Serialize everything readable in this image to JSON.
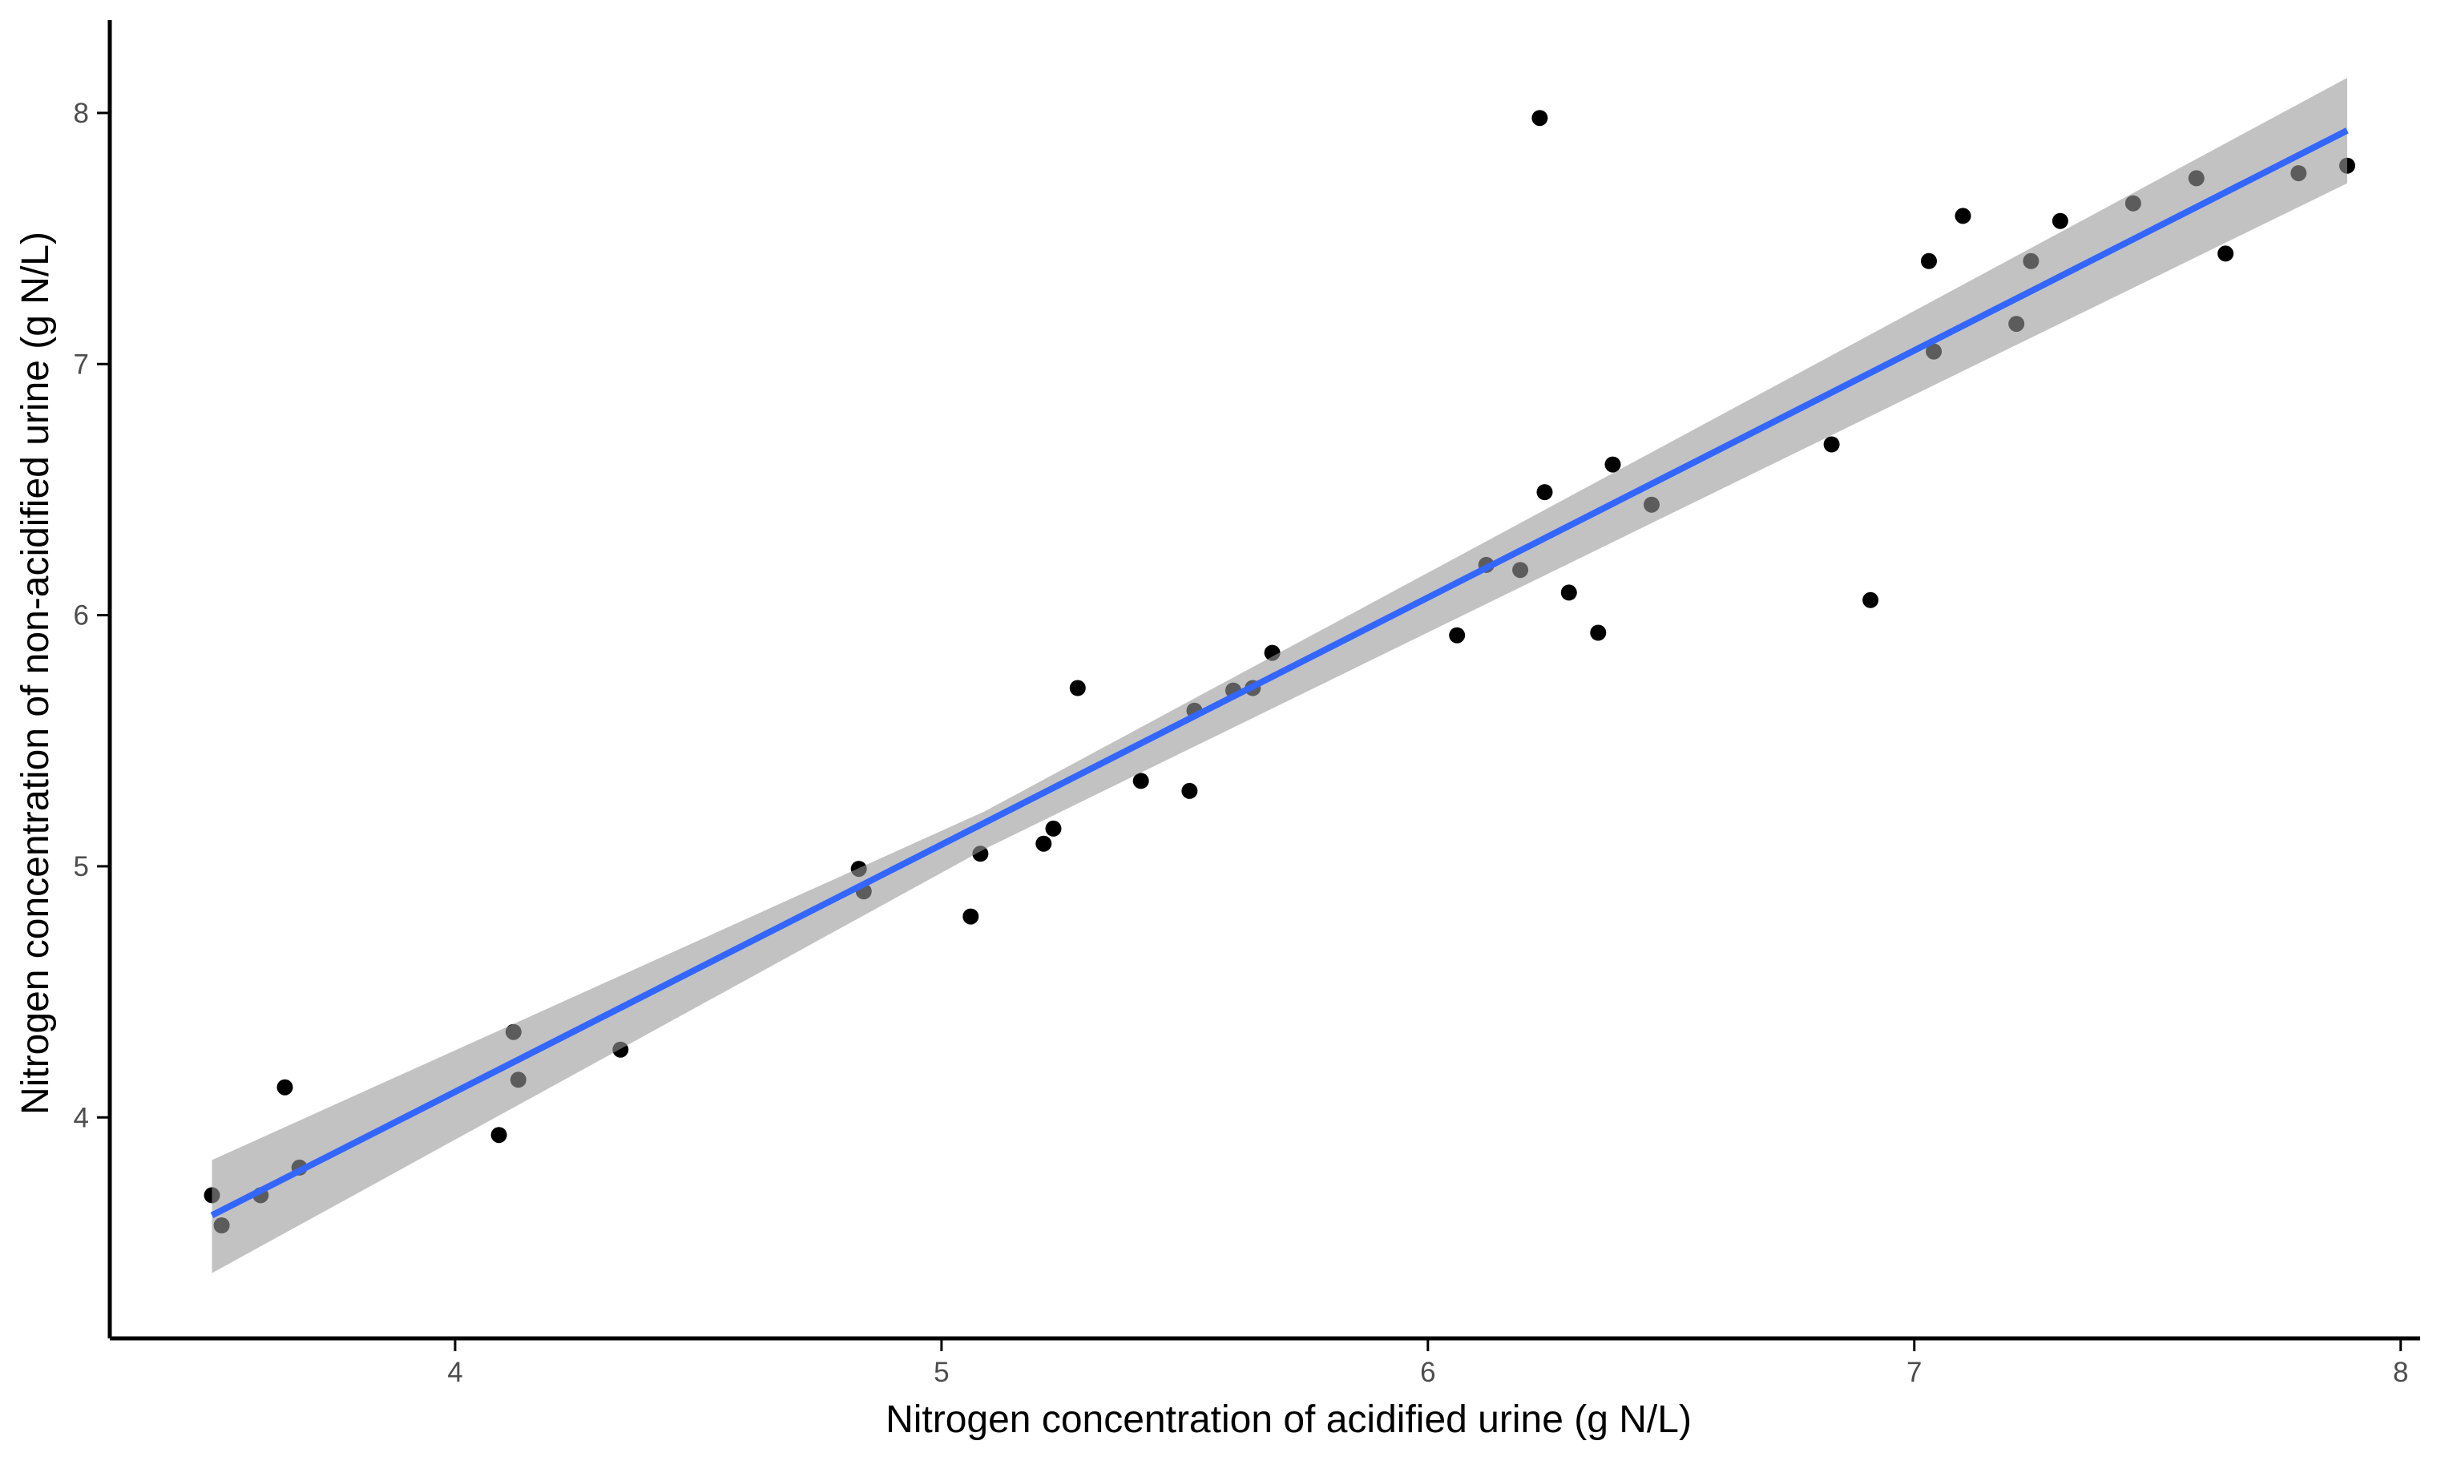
{
  "chart_data": {
    "type": "scatter",
    "title": "",
    "xlabel": "Nitrogen concentration of acidified urine (g N/L)",
    "ylabel": "Nitrogen concentration of non-acidified urine (g N/L)",
    "xlim": [
      3.29,
      8.04
    ],
    "ylim": [
      3.12,
      8.37
    ],
    "xticks": [
      4,
      5,
      6,
      7,
      8
    ],
    "yticks": [
      4,
      5,
      6,
      7,
      8
    ],
    "grid": false,
    "legend": "none",
    "series": [
      {
        "points": [
          [
            3.5,
            3.69
          ],
          [
            3.52,
            3.57
          ],
          [
            3.6,
            3.69
          ],
          [
            3.65,
            4.12
          ],
          [
            3.68,
            3.8
          ],
          [
            4.09,
            3.93
          ],
          [
            4.12,
            4.34
          ],
          [
            4.13,
            4.15
          ],
          [
            4.34,
            4.27
          ],
          [
            4.83,
            4.99
          ],
          [
            4.84,
            4.9
          ],
          [
            5.06,
            4.8
          ],
          [
            5.08,
            5.05
          ],
          [
            5.21,
            5.09
          ],
          [
            5.23,
            5.15
          ],
          [
            5.28,
            5.71
          ],
          [
            5.41,
            5.34
          ],
          [
            5.51,
            5.3
          ],
          [
            5.52,
            5.62
          ],
          [
            5.6,
            5.7
          ],
          [
            5.64,
            5.71
          ],
          [
            5.68,
            5.85
          ],
          [
            6.06,
            5.92
          ],
          [
            6.12,
            6.2
          ],
          [
            6.19,
            6.18
          ],
          [
            6.23,
            7.98
          ],
          [
            6.24,
            6.49
          ],
          [
            6.29,
            6.09
          ],
          [
            6.35,
            5.93
          ],
          [
            6.38,
            6.6
          ],
          [
            6.46,
            6.44
          ],
          [
            6.83,
            6.68
          ],
          [
            6.91,
            6.06
          ],
          [
            7.03,
            7.41
          ],
          [
            7.04,
            7.05
          ],
          [
            7.1,
            7.59
          ],
          [
            7.21,
            7.16
          ],
          [
            7.24,
            7.41
          ],
          [
            7.3,
            7.57
          ],
          [
            7.45,
            7.64
          ],
          [
            7.58,
            7.74
          ],
          [
            7.64,
            7.44
          ],
          [
            7.79,
            7.76
          ],
          [
            7.89,
            7.79
          ]
        ],
        "color": "#000000"
      }
    ],
    "fit": {
      "method": "linear",
      "x": [
        3.5,
        7.89
      ],
      "y": [
        3.61,
        7.93
      ],
      "color": "#3366FF",
      "confidence_band": {
        "color": "#999999",
        "x": [
          3.5,
          5.09,
          7.89
        ],
        "lower": [
          3.38,
          5.07,
          7.72
        ],
        "upper": [
          3.83,
          5.22,
          8.14
        ]
      }
    }
  }
}
